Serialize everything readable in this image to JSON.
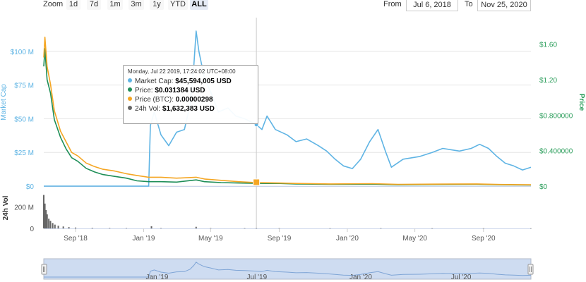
{
  "toolbar": {
    "zoom_label": "Zoom",
    "zoom_options": [
      "1d",
      "7d",
      "1m",
      "3m",
      "1y",
      "YTD",
      "ALL"
    ],
    "active_zoom": "ALL",
    "from_label": "From",
    "from_value": "Jul 6, 2018",
    "to_label": "To",
    "to_value": "Nov 25, 2020"
  },
  "tooltip": {
    "header": "Monday, Jul 22 2019, 17:24:02 UTC+08:00",
    "rows": [
      {
        "label": "Market Cap:",
        "value": "$45,594,005 USD",
        "color": "#5fb4e4"
      },
      {
        "label": "Price:",
        "value": "$0.031384 USD",
        "color": "#1e8e57"
      },
      {
        "label": "Price (BTC):",
        "value": "0.00000298",
        "color": "#f5a623"
      },
      {
        "label": "24h Vol:",
        "value": "$1,632,383 USD",
        "color": "#666666"
      }
    ]
  },
  "colors": {
    "market_cap": "#5fb4e4",
    "price": "#1e8e57",
    "price_btc": "#f5a623",
    "volume": "#666666",
    "axis_left": "#5fb4e4",
    "axis_right": "#2a9d5a",
    "navigator_fill": "#c5d6ee"
  },
  "chart_data": {
    "type": "line",
    "title": "",
    "x_type": "date",
    "x_range": [
      "2018-07-06",
      "2020-11-25"
    ],
    "x_ticks": [
      {
        "date": "2018-09-01",
        "label": "Sep '18"
      },
      {
        "date": "2019-01-01",
        "label": "Jan '19"
      },
      {
        "date": "2019-05-01",
        "label": "May '19"
      },
      {
        "date": "2019-09-01",
        "label": "Sep '19"
      },
      {
        "date": "2020-01-01",
        "label": "Jan '20"
      },
      {
        "date": "2020-05-01",
        "label": "May '20"
      },
      {
        "date": "2020-09-01",
        "label": "Sep '20"
      }
    ],
    "y_left": {
      "label": "Market Cap",
      "range": [
        0,
        125000000
      ],
      "ticks": [
        0,
        25000000,
        50000000,
        75000000,
        100000000
      ],
      "tick_labels": [
        "$0",
        "$25 M",
        "$50 M",
        "$75 M",
        "$100 M"
      ]
    },
    "y_right": {
      "label": "Price",
      "range": [
        0,
        1.9
      ],
      "ticks": [
        0,
        0.4,
        0.8,
        1.2,
        1.6
      ],
      "tick_labels": [
        "$0",
        "$0.400000",
        "$0.800000",
        "$1.20",
        "$1.60"
      ]
    },
    "y_volume": {
      "label": "24h Vol",
      "range": [
        0,
        320000000
      ],
      "ticks": [
        0,
        200000000
      ],
      "tick_labels": [
        "0",
        "200 M"
      ]
    },
    "series": [
      {
        "name": "Market Cap",
        "axis": "left",
        "points": [
          [
            "2018-07-06",
            0
          ],
          [
            "2018-09-01",
            0
          ],
          [
            "2018-11-01",
            0
          ],
          [
            "2019-01-10",
            0
          ],
          [
            "2019-01-13",
            45000000
          ],
          [
            "2019-01-20",
            55000000
          ],
          [
            "2019-02-01",
            38000000
          ],
          [
            "2019-02-15",
            30000000
          ],
          [
            "2019-03-01",
            40000000
          ],
          [
            "2019-03-15",
            42000000
          ],
          [
            "2019-03-25",
            60000000
          ],
          [
            "2019-04-01",
            90000000
          ],
          [
            "2019-04-05",
            115000000
          ],
          [
            "2019-04-10",
            100000000
          ],
          [
            "2019-04-20",
            80000000
          ],
          [
            "2019-05-01",
            70000000
          ],
          [
            "2019-05-15",
            55000000
          ],
          [
            "2019-06-01",
            58000000
          ],
          [
            "2019-06-15",
            52000000
          ],
          [
            "2019-07-01",
            50000000
          ],
          [
            "2019-07-22",
            45594005
          ],
          [
            "2019-08-01",
            42000000
          ],
          [
            "2019-08-10",
            52000000
          ],
          [
            "2019-08-25",
            42000000
          ],
          [
            "2019-09-15",
            38000000
          ],
          [
            "2019-10-01",
            33000000
          ],
          [
            "2019-10-20",
            35000000
          ],
          [
            "2019-11-10",
            30000000
          ],
          [
            "2019-11-25",
            26000000
          ],
          [
            "2019-12-10",
            20000000
          ],
          [
            "2019-12-25",
            15000000
          ],
          [
            "2020-01-10",
            13000000
          ],
          [
            "2020-01-25",
            20000000
          ],
          [
            "2020-02-10",
            33000000
          ],
          [
            "2020-02-25",
            42000000
          ],
          [
            "2020-03-10",
            25000000
          ],
          [
            "2020-03-20",
            14000000
          ],
          [
            "2020-04-10",
            20000000
          ],
          [
            "2020-05-10",
            22000000
          ],
          [
            "2020-06-01",
            25000000
          ],
          [
            "2020-06-20",
            28000000
          ],
          [
            "2020-07-20",
            26000000
          ],
          [
            "2020-08-10",
            28000000
          ],
          [
            "2020-08-25",
            31000000
          ],
          [
            "2020-09-10",
            28000000
          ],
          [
            "2020-09-25",
            22000000
          ],
          [
            "2020-10-10",
            17000000
          ],
          [
            "2020-10-25",
            15000000
          ],
          [
            "2020-11-10",
            12000000
          ],
          [
            "2020-11-25",
            14000000
          ]
        ]
      },
      {
        "name": "Price",
        "axis": "right",
        "points": [
          [
            "2018-07-06",
            1.35
          ],
          [
            "2018-07-08",
            1.55
          ],
          [
            "2018-07-12",
            1.2
          ],
          [
            "2018-07-18",
            1.05
          ],
          [
            "2018-07-25",
            0.75
          ],
          [
            "2018-08-05",
            0.55
          ],
          [
            "2018-08-15",
            0.42
          ],
          [
            "2018-08-25",
            0.32
          ],
          [
            "2018-09-05",
            0.28
          ],
          [
            "2018-09-20",
            0.2
          ],
          [
            "2018-10-05",
            0.16
          ],
          [
            "2018-10-20",
            0.13
          ],
          [
            "2018-11-10",
            0.11
          ],
          [
            "2018-12-01",
            0.09
          ],
          [
            "2018-12-20",
            0.06
          ],
          [
            "2019-01-10",
            0.05
          ],
          [
            "2019-02-01",
            0.05
          ],
          [
            "2019-03-01",
            0.045
          ],
          [
            "2019-04-05",
            0.07
          ],
          [
            "2019-04-20",
            0.05
          ],
          [
            "2019-05-20",
            0.04
          ],
          [
            "2019-06-20",
            0.035
          ],
          [
            "2019-07-22",
            0.031384
          ],
          [
            "2019-09-01",
            0.03
          ],
          [
            "2019-10-01",
            0.025
          ],
          [
            "2019-12-01",
            0.02
          ],
          [
            "2020-02-15",
            0.022
          ],
          [
            "2020-04-01",
            0.015
          ],
          [
            "2020-06-01",
            0.018
          ],
          [
            "2020-08-20",
            0.02
          ],
          [
            "2020-10-01",
            0.015
          ],
          [
            "2020-11-25",
            0.012
          ]
        ]
      },
      {
        "name": "Price (BTC)",
        "axis": "right",
        "points": [
          [
            "2018-07-06",
            1.45
          ],
          [
            "2018-07-08",
            1.68
          ],
          [
            "2018-07-12",
            1.35
          ],
          [
            "2018-07-18",
            1.15
          ],
          [
            "2018-07-25",
            0.85
          ],
          [
            "2018-08-05",
            0.62
          ],
          [
            "2018-08-15",
            0.5
          ],
          [
            "2018-08-25",
            0.38
          ],
          [
            "2018-09-05",
            0.34
          ],
          [
            "2018-09-20",
            0.26
          ],
          [
            "2018-10-05",
            0.22
          ],
          [
            "2018-10-20",
            0.19
          ],
          [
            "2018-11-10",
            0.17
          ],
          [
            "2018-12-01",
            0.14
          ],
          [
            "2018-12-20",
            0.12
          ],
          [
            "2019-01-10",
            0.1
          ],
          [
            "2019-02-01",
            0.1
          ],
          [
            "2019-03-01",
            0.09
          ],
          [
            "2019-04-05",
            0.1
          ],
          [
            "2019-04-20",
            0.08
          ],
          [
            "2019-05-20",
            0.065
          ],
          [
            "2019-06-20",
            0.05
          ],
          [
            "2019-07-22",
            0.04
          ],
          [
            "2019-09-01",
            0.035
          ],
          [
            "2019-10-01",
            0.03
          ],
          [
            "2019-12-01",
            0.025
          ],
          [
            "2020-02-15",
            0.028
          ],
          [
            "2020-04-01",
            0.02
          ],
          [
            "2020-06-01",
            0.022
          ],
          [
            "2020-08-20",
            0.025
          ],
          [
            "2020-10-01",
            0.018
          ],
          [
            "2020-11-25",
            0.015
          ]
        ]
      },
      {
        "name": "24h Vol",
        "axis": "volume",
        "points": [
          [
            "2018-07-06",
            310000000
          ],
          [
            "2018-07-08",
            230000000
          ],
          [
            "2018-07-10",
            170000000
          ],
          [
            "2018-07-12",
            130000000
          ],
          [
            "2018-07-15",
            90000000
          ],
          [
            "2018-07-18",
            70000000
          ],
          [
            "2018-07-22",
            50000000
          ],
          [
            "2018-07-26",
            35000000
          ],
          [
            "2018-08-01",
            25000000
          ],
          [
            "2018-08-10",
            18000000
          ],
          [
            "2018-08-20",
            12000000
          ],
          [
            "2018-09-01",
            8000000
          ],
          [
            "2018-10-01",
            5000000
          ],
          [
            "2018-11-01",
            4000000
          ],
          [
            "2018-12-01",
            3000000
          ],
          [
            "2019-01-15",
            20000000
          ],
          [
            "2019-02-01",
            3000000
          ],
          [
            "2019-04-05",
            15000000
          ],
          [
            "2019-05-01",
            3000000
          ],
          [
            "2019-07-01",
            2000000
          ],
          [
            "2019-07-22",
            1632383
          ],
          [
            "2019-09-01",
            2000000
          ],
          [
            "2019-12-01",
            1500000
          ],
          [
            "2020-03-01",
            2000000
          ],
          [
            "2020-06-01",
            1500000
          ],
          [
            "2020-09-01",
            1500000
          ],
          [
            "2020-11-25",
            1000000
          ]
        ]
      }
    ],
    "highlight": {
      "date": "2019-07-22"
    },
    "navigator": {
      "x_ticks": [
        {
          "date": "2019-01-01",
          "label": "Jan '19"
        },
        {
          "date": "2019-07-01",
          "label": "Jul '19"
        },
        {
          "date": "2020-01-01",
          "label": "Jan '20"
        },
        {
          "date": "2020-07-01",
          "label": "Jul '20"
        }
      ]
    },
    "legend": "none"
  }
}
